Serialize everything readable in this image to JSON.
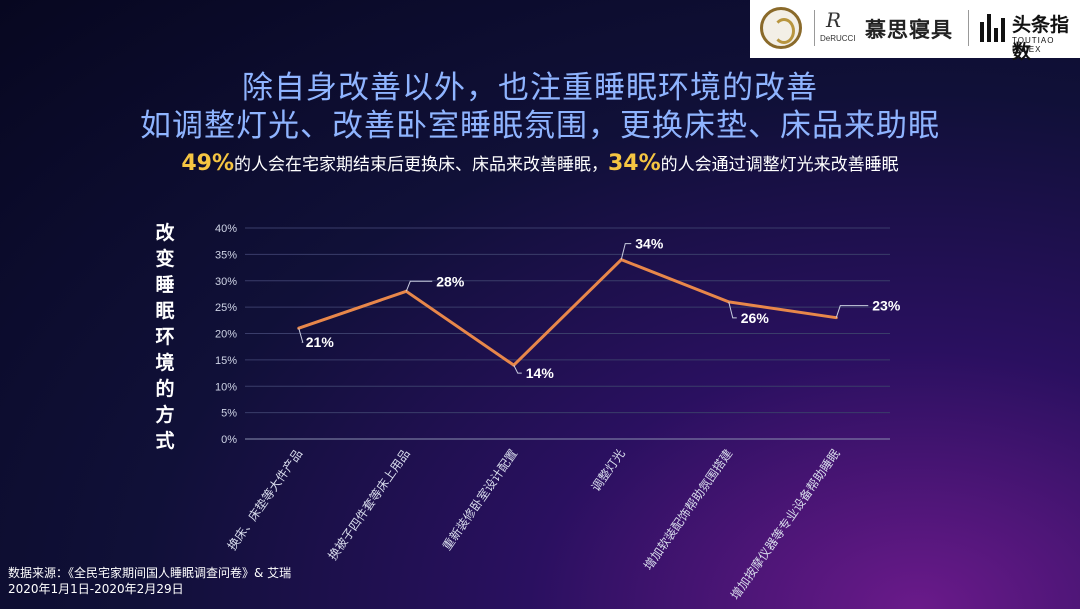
{
  "header": {
    "brand1_mark": "R",
    "brand1_sub": "DeRUCCI",
    "brand1_name": "慕思寝具",
    "brand2_name": "头条指数",
    "brand2_sub": "TOUTIAO INDEX"
  },
  "title_line1": "除自身改善以外，也注重睡眠环境的改善",
  "title_line2": "如调整灯光、改善卧室睡眠氛围，更换床垫、床品来助眠",
  "subtitle": {
    "hl1": "49%",
    "text1": "的人会在宅家期结束后更换床、床品来改善睡眠，",
    "hl2": "34%",
    "text2": "的人会通过调整灯光来改善睡眠"
  },
  "source_line1": "数据来源：《全民宅家期间国人睡眠调查问卷》& 艾瑞",
  "source_line2": "2020年1月1日-2020年2月29日",
  "colors": {
    "line": "#e8874a",
    "title": "#8fb4ff",
    "highlight": "#f5c542"
  },
  "chart_data": {
    "type": "line",
    "ylabel": "改变睡眠环境的方式",
    "xlabel": "",
    "ylim": [
      0,
      40
    ],
    "ytick_labels": [
      "0%",
      "5%",
      "10%",
      "15%",
      "20%",
      "25%",
      "30%",
      "35%",
      "40%"
    ],
    "grid": true,
    "categories": [
      "换床、床垫等大件产品",
      "换被子四件套等床上用品",
      "重新装修卧室设计配置",
      "调整灯光",
      "增加软装配饰帮助氛围搭建",
      "增加按摩仪器等专业设备帮助睡眠"
    ],
    "values": [
      21,
      28,
      14,
      34,
      26,
      23
    ],
    "data_labels": [
      "21%",
      "28%",
      "14%",
      "34%",
      "26%",
      "23%"
    ]
  }
}
